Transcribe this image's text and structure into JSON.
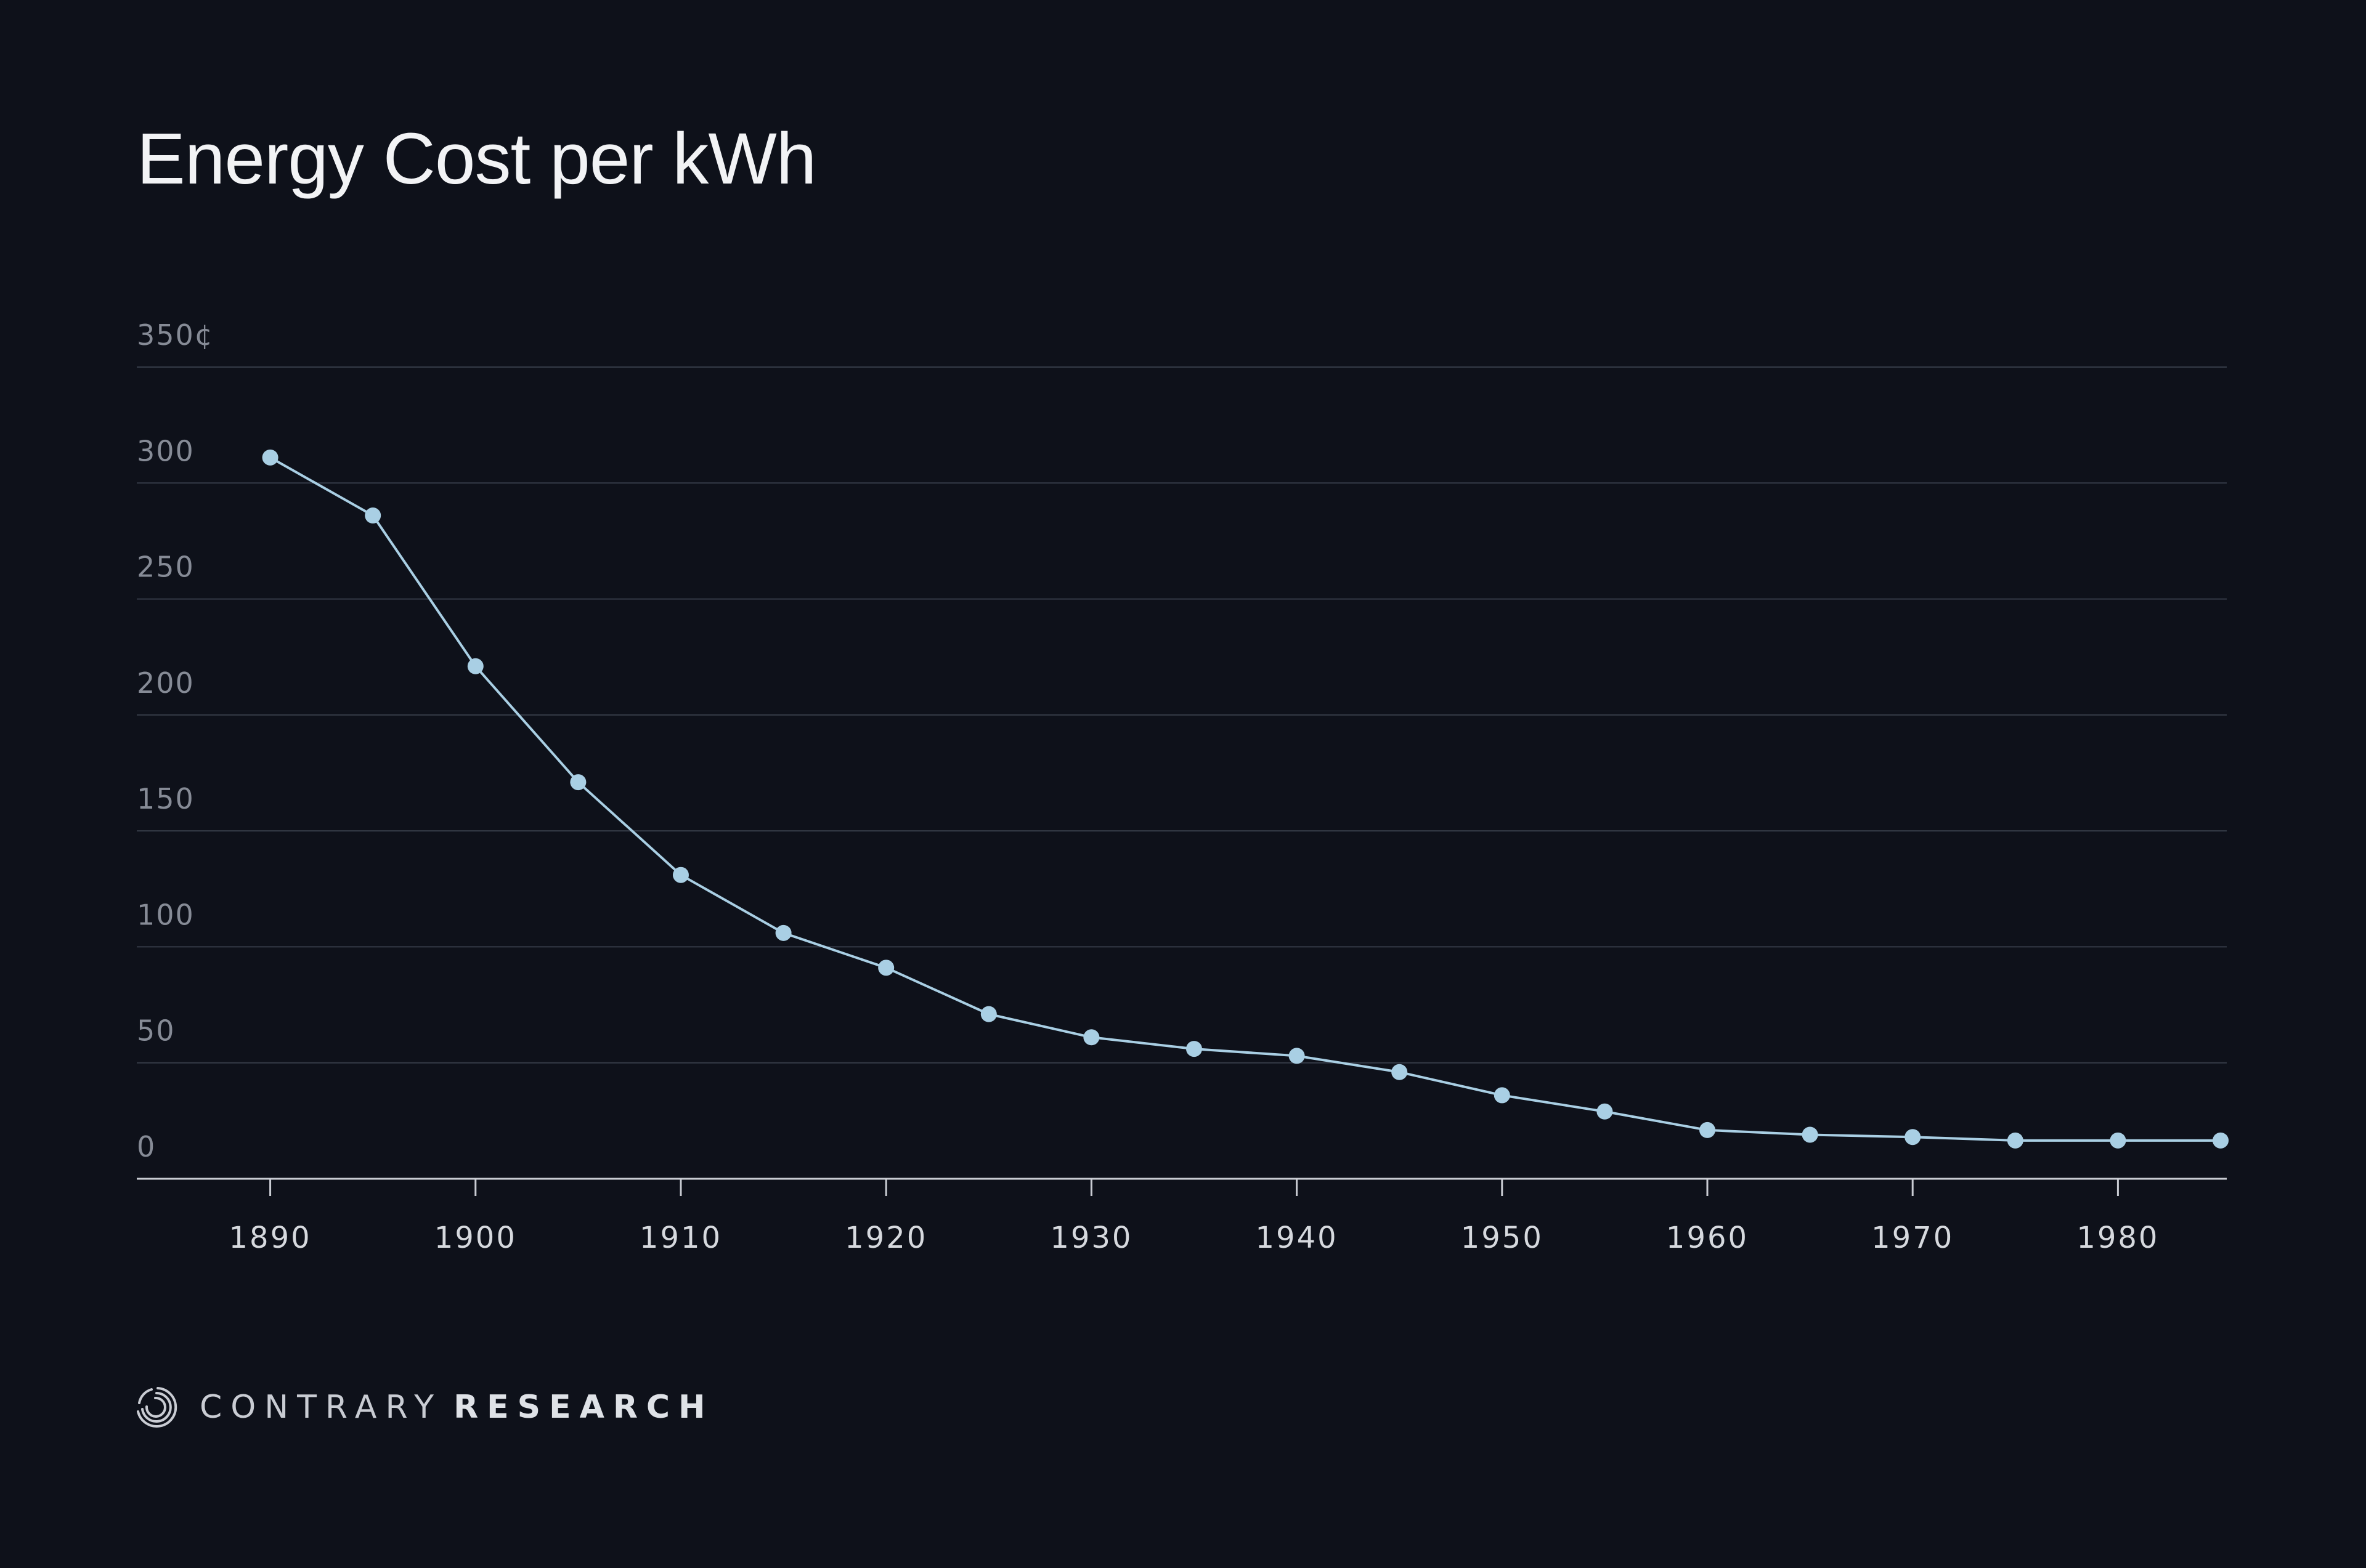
{
  "title": "Energy Cost per kWh",
  "brand": {
    "name_light": "CONTRARY",
    "name_bold": "RESEARCH",
    "logo_icon": "contrary-logo-icon"
  },
  "colors": {
    "background": "#0e111a",
    "series": "#a9cfe4",
    "grid": "#353b47",
    "axis": "#c9ccd3",
    "y_tick_text": "#868b96",
    "x_tick_text": "#d6d9de"
  },
  "chart_data": {
    "type": "line",
    "title": "Energy Cost per kWh",
    "xlabel": "",
    "ylabel": "",
    "unit": "¢",
    "x": [
      1890,
      1895,
      1900,
      1905,
      1910,
      1915,
      1920,
      1925,
      1930,
      1935,
      1940,
      1945,
      1950,
      1955,
      1960,
      1965,
      1970,
      1975,
      1980,
      1985
    ],
    "series": [
      {
        "values": [
          311,
          286,
          221,
          171,
          131,
          106,
          91,
          71,
          61,
          56,
          53,
          46,
          36,
          29,
          21,
          19,
          18,
          16.5,
          16.5,
          16.5
        ]
      }
    ],
    "xlim": [
      1883.5,
      1985.3
    ],
    "ylim": [
      0,
      350
    ],
    "y_ticks": [
      {
        "value": 0,
        "label": "0"
      },
      {
        "value": 50,
        "label": "50"
      },
      {
        "value": 100,
        "label": "100"
      },
      {
        "value": 150,
        "label": "150"
      },
      {
        "value": 200,
        "label": "200"
      },
      {
        "value": 250,
        "label": "250"
      },
      {
        "value": 300,
        "label": "300"
      },
      {
        "value": 350,
        "label": "350¢"
      }
    ],
    "x_ticks": [
      {
        "value": 1890,
        "label": "1890"
      },
      {
        "value": 1900,
        "label": "1900"
      },
      {
        "value": 1910,
        "label": "1910"
      },
      {
        "value": 1920,
        "label": "1920"
      },
      {
        "value": 1930,
        "label": "1930"
      },
      {
        "value": 1940,
        "label": "1940"
      },
      {
        "value": 1950,
        "label": "1950"
      },
      {
        "value": 1960,
        "label": "1960"
      },
      {
        "value": 1970,
        "label": "1970"
      },
      {
        "value": 1980,
        "label": "1980"
      }
    ],
    "grid": true,
    "legend": "none"
  }
}
